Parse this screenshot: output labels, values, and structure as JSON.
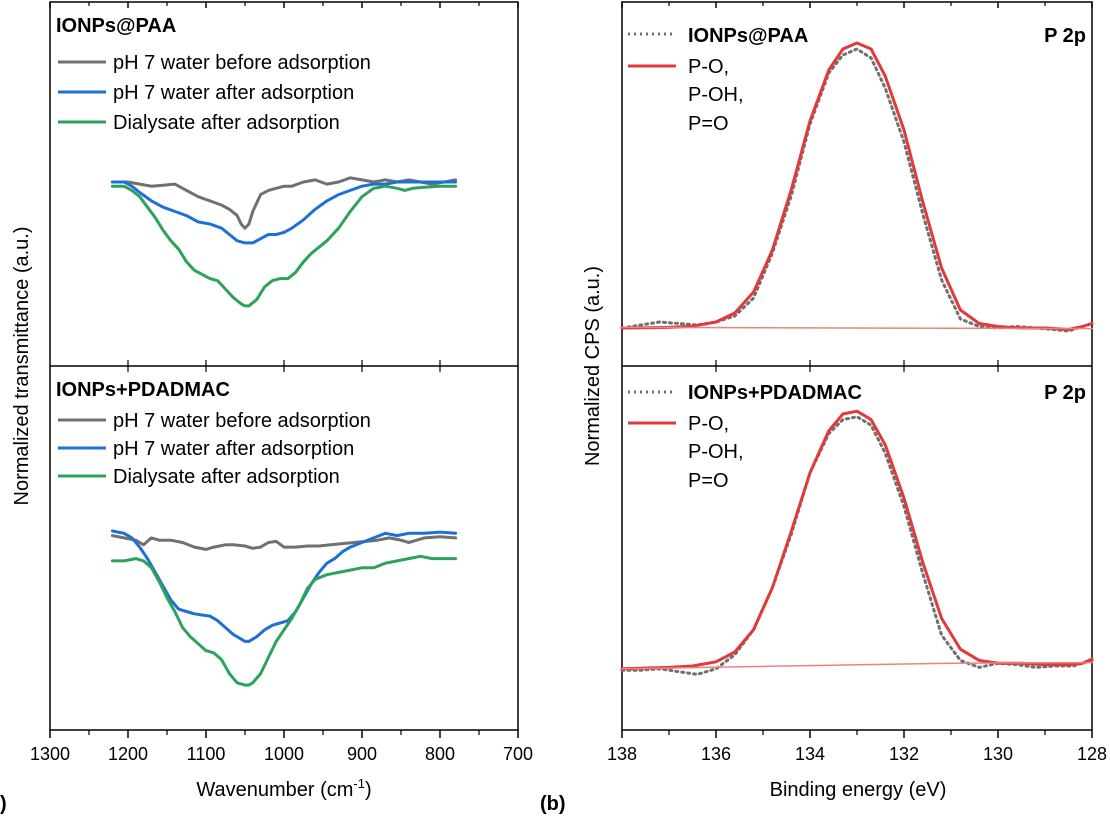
{
  "panel_labels": {
    "a": ")",
    "b": "(b)"
  },
  "colors": {
    "gray": "#707070",
    "blue": "#1f6fd6",
    "green": "#2ca35a",
    "red": "#e03a3a",
    "fit_baseline": "#ef8080",
    "dotted": "#707070",
    "axis": "#000000"
  },
  "chart_data": [
    {
      "type": "line",
      "panel": "a",
      "xlabel": "Wavenumber (cm",
      "xlabel_sup": "-1",
      "xlabel_close": ")",
      "ylabel": "Normalized transmittance (a.u.)",
      "xlim": [
        1300,
        700
      ],
      "xticks": [
        1300,
        1200,
        1100,
        1000,
        900,
        800,
        700
      ],
      "subplots": [
        {
          "title": "IONPs@PAA",
          "ylim": [
            0,
            1
          ],
          "series": [
            {
              "name": "pH 7 water before adsorption",
              "color": "gray",
              "x": [
                1220,
                1200,
                1185,
                1170,
                1155,
                1140,
                1125,
                1110,
                1095,
                1080,
                1070,
                1060,
                1055,
                1050,
                1045,
                1040,
                1030,
                1020,
                1010,
                1000,
                990,
                975,
                960,
                945,
                930,
                915,
                900,
                885,
                870,
                855,
                840,
                825,
                810,
                795,
                780
              ],
              "y": [
                0.8,
                0.8,
                0.79,
                0.78,
                0.785,
                0.79,
                0.76,
                0.73,
                0.71,
                0.69,
                0.67,
                0.64,
                0.6,
                0.58,
                0.6,
                0.66,
                0.74,
                0.76,
                0.77,
                0.78,
                0.78,
                0.8,
                0.81,
                0.79,
                0.8,
                0.82,
                0.81,
                0.8,
                0.81,
                0.8,
                0.81,
                0.8,
                0.79,
                0.8,
                0.81
              ]
            },
            {
              "name": "pH 7 water after adsorption",
              "color": "blue",
              "x": [
                1220,
                1205,
                1195,
                1185,
                1170,
                1155,
                1140,
                1125,
                1110,
                1095,
                1080,
                1070,
                1060,
                1050,
                1040,
                1030,
                1020,
                1010,
                1000,
                990,
                975,
                960,
                945,
                930,
                915,
                900,
                885,
                870,
                855,
                840,
                820,
                800,
                780
              ],
              "y": [
                0.8,
                0.8,
                0.78,
                0.75,
                0.71,
                0.68,
                0.66,
                0.64,
                0.61,
                0.6,
                0.58,
                0.55,
                0.52,
                0.51,
                0.51,
                0.53,
                0.55,
                0.55,
                0.56,
                0.58,
                0.62,
                0.67,
                0.71,
                0.74,
                0.76,
                0.78,
                0.79,
                0.79,
                0.8,
                0.8,
                0.8,
                0.8,
                0.8
              ]
            },
            {
              "name": "Dialysate after adsorption",
              "color": "green",
              "x": [
                1220,
                1205,
                1195,
                1185,
                1175,
                1165,
                1155,
                1145,
                1135,
                1125,
                1115,
                1105,
                1095,
                1085,
                1075,
                1065,
                1055,
                1050,
                1045,
                1035,
                1025,
                1015,
                1005,
                995,
                985,
                975,
                965,
                955,
                945,
                930,
                915,
                900,
                885,
                870,
                855,
                845,
                835,
                820,
                800,
                780
              ],
              "y": [
                0.78,
                0.78,
                0.76,
                0.73,
                0.68,
                0.63,
                0.57,
                0.52,
                0.48,
                0.42,
                0.38,
                0.36,
                0.34,
                0.33,
                0.29,
                0.25,
                0.22,
                0.21,
                0.21,
                0.24,
                0.3,
                0.33,
                0.34,
                0.34,
                0.37,
                0.42,
                0.46,
                0.49,
                0.52,
                0.58,
                0.66,
                0.73,
                0.77,
                0.78,
                0.77,
                0.76,
                0.77,
                0.775,
                0.78,
                0.78
              ]
            }
          ]
        },
        {
          "title": "IONPs+PDADMAC",
          "ylim": [
            0,
            1
          ],
          "series": [
            {
              "name": "pH 7 water before adsorption",
              "color": "gray",
              "x": [
                1220,
                1205,
                1190,
                1180,
                1170,
                1160,
                1145,
                1130,
                1115,
                1100,
                1090,
                1075,
                1065,
                1050,
                1040,
                1030,
                1020,
                1010,
                1000,
                985,
                970,
                955,
                940,
                925,
                910,
                895,
                880,
                865,
                850,
                840,
                830,
                820,
                800,
                780
              ],
              "y": [
                0.78,
                0.77,
                0.76,
                0.74,
                0.77,
                0.76,
                0.76,
                0.75,
                0.73,
                0.72,
                0.73,
                0.74,
                0.74,
                0.735,
                0.725,
                0.73,
                0.75,
                0.755,
                0.73,
                0.73,
                0.735,
                0.735,
                0.74,
                0.745,
                0.75,
                0.755,
                0.76,
                0.77,
                0.76,
                0.75,
                0.76,
                0.77,
                0.775,
                0.77
              ]
            },
            {
              "name": "pH 7 water after adsorption",
              "color": "blue",
              "x": [
                1220,
                1205,
                1195,
                1185,
                1175,
                1165,
                1155,
                1145,
                1135,
                1125,
                1115,
                1105,
                1095,
                1085,
                1075,
                1065,
                1055,
                1050,
                1045,
                1035,
                1025,
                1015,
                1005,
                995,
                985,
                975,
                965,
                955,
                945,
                935,
                925,
                915,
                900,
                885,
                870,
                855,
                840,
                820,
                800,
                780
              ],
              "y": [
                0.8,
                0.79,
                0.77,
                0.73,
                0.68,
                0.62,
                0.56,
                0.5,
                0.46,
                0.45,
                0.44,
                0.435,
                0.43,
                0.41,
                0.38,
                0.35,
                0.33,
                0.32,
                0.32,
                0.34,
                0.37,
                0.39,
                0.4,
                0.41,
                0.45,
                0.51,
                0.57,
                0.62,
                0.66,
                0.68,
                0.71,
                0.73,
                0.75,
                0.77,
                0.79,
                0.78,
                0.79,
                0.79,
                0.795,
                0.79
              ]
            },
            {
              "name": "Dialysate after adsorption",
              "color": "green",
              "x": [
                1220,
                1205,
                1190,
                1180,
                1170,
                1160,
                1150,
                1140,
                1130,
                1120,
                1110,
                1100,
                1090,
                1080,
                1070,
                1060,
                1050,
                1045,
                1040,
                1030,
                1020,
                1010,
                1000,
                990,
                980,
                970,
                960,
                945,
                930,
                915,
                900,
                885,
                870,
                855,
                840,
                825,
                810,
                795,
                780
              ],
              "y": [
                0.67,
                0.67,
                0.68,
                0.67,
                0.64,
                0.58,
                0.51,
                0.45,
                0.38,
                0.34,
                0.31,
                0.28,
                0.27,
                0.24,
                0.18,
                0.14,
                0.13,
                0.13,
                0.14,
                0.18,
                0.25,
                0.32,
                0.37,
                0.42,
                0.48,
                0.55,
                0.59,
                0.61,
                0.62,
                0.63,
                0.64,
                0.64,
                0.66,
                0.67,
                0.68,
                0.69,
                0.68,
                0.68,
                0.68
              ]
            }
          ]
        }
      ]
    },
    {
      "type": "line",
      "panel": "b",
      "xlabel": "Binding energy (eV)",
      "ylabel": "Normalized CPS (a.u.)",
      "xlim": [
        138,
        128
      ],
      "xticks": [
        138,
        136,
        134,
        132,
        130,
        128
      ],
      "subplots": [
        {
          "title": "IONPs@PAA",
          "corner_label": "P 2p",
          "ylim": [
            0,
            1
          ],
          "series": [
            {
              "name": "IONPs@PAA",
              "color": "dotted",
              "style": "dotted",
              "x": [
                138,
                137.6,
                137.2,
                136.8,
                136.4,
                136,
                135.6,
                135.2,
                134.8,
                134.4,
                134,
                133.6,
                133.3,
                133.0,
                132.7,
                132.4,
                132.0,
                131.6,
                131.2,
                130.8,
                130.4,
                130,
                129.6,
                129.2,
                128.8,
                128.5,
                128.2,
                128
              ],
              "y": [
                0.04,
                0.05,
                0.06,
                0.055,
                0.05,
                0.06,
                0.08,
                0.14,
                0.29,
                0.48,
                0.72,
                0.89,
                0.95,
                0.97,
                0.94,
                0.84,
                0.66,
                0.42,
                0.2,
                0.07,
                0.045,
                0.04,
                0.045,
                0.04,
                0.035,
                0.03,
                0.045,
                0.055
              ]
            },
            {
              "name": "P-O,\nP-OH,\nP=O",
              "color": "red",
              "style": "solid",
              "x": [
                138,
                137,
                136.5,
                136,
                135.6,
                135.2,
                134.8,
                134.4,
                134,
                133.6,
                133.3,
                133.0,
                132.7,
                132.4,
                132.0,
                131.6,
                131.2,
                130.8,
                130.4,
                130,
                129.5,
                129,
                128.5,
                128.2,
                128
              ],
              "y": [
                0.04,
                0.042,
                0.046,
                0.06,
                0.09,
                0.16,
                0.3,
                0.5,
                0.73,
                0.9,
                0.97,
                0.99,
                0.97,
                0.88,
                0.7,
                0.46,
                0.24,
                0.1,
                0.055,
                0.045,
                0.04,
                0.04,
                0.035,
                0.045,
                0.055
              ]
            },
            {
              "name": "baseline",
              "color": "fit_baseline",
              "style": "thin",
              "x": [
                138,
                128
              ],
              "y": [
                0.042,
                0.038
              ]
            }
          ]
        },
        {
          "title": "IONPs+PDADMAC",
          "corner_label": "P 2p",
          "ylim": [
            0,
            1
          ],
          "series": [
            {
              "name": "IONPs+PDADMAC",
              "color": "dotted",
              "style": "dotted",
              "x": [
                138,
                137.6,
                137.2,
                136.8,
                136.4,
                136,
                135.6,
                135.2,
                134.8,
                134.4,
                134,
                133.6,
                133.3,
                133.0,
                132.7,
                132.4,
                132.0,
                131.6,
                131.2,
                130.8,
                130.4,
                130,
                129.6,
                129.2,
                128.8,
                128.4,
                128
              ],
              "y": [
                0.035,
                0.035,
                0.04,
                0.03,
                0.02,
                0.04,
                0.09,
                0.18,
                0.33,
                0.52,
                0.74,
                0.88,
                0.93,
                0.94,
                0.91,
                0.81,
                0.62,
                0.38,
                0.16,
                0.07,
                0.045,
                0.06,
                0.055,
                0.045,
                0.05,
                0.05,
                0.07
              ]
            },
            {
              "name": "P-O,\nP-OH,\nP=O",
              "color": "red",
              "style": "solid",
              "x": [
                138,
                137,
                136.5,
                136,
                135.6,
                135.2,
                134.8,
                134.4,
                134,
                133.6,
                133.3,
                133.0,
                132.7,
                132.4,
                132.0,
                131.6,
                131.2,
                130.8,
                130.4,
                130,
                129.5,
                129,
                128.5,
                128.2,
                128
              ],
              "y": [
                0.04,
                0.045,
                0.05,
                0.065,
                0.1,
                0.18,
                0.33,
                0.53,
                0.74,
                0.89,
                0.95,
                0.96,
                0.93,
                0.84,
                0.65,
                0.42,
                0.22,
                0.11,
                0.07,
                0.06,
                0.06,
                0.055,
                0.055,
                0.06,
                0.075
              ]
            },
            {
              "name": "baseline",
              "color": "fit_baseline",
              "style": "thin",
              "x": [
                138,
                131,
                128
              ],
              "y": [
                0.04,
                0.06,
                0.062
              ]
            }
          ]
        }
      ]
    }
  ],
  "legend_text": {
    "a_top_1": "pH 7 water before adsorption",
    "a_top_2": "pH 7 water after adsorption",
    "a_top_3": "Dialysate after adsorption",
    "a_bot_1": "pH 7 water before adsorption",
    "a_bot_2": "pH 7 water after adsorption",
    "a_bot_3": "Dialysate after adsorption",
    "b_top_1": "IONPs@PAA",
    "b_top_2a": "P-O,",
    "b_top_2b": "P-OH,",
    "b_top_2c": "P=O",
    "b_bot_1": "IONPs+PDADMAC",
    "b_bot_2a": "P-O,",
    "b_bot_2b": "P-OH,",
    "b_bot_2c": "P=O"
  }
}
